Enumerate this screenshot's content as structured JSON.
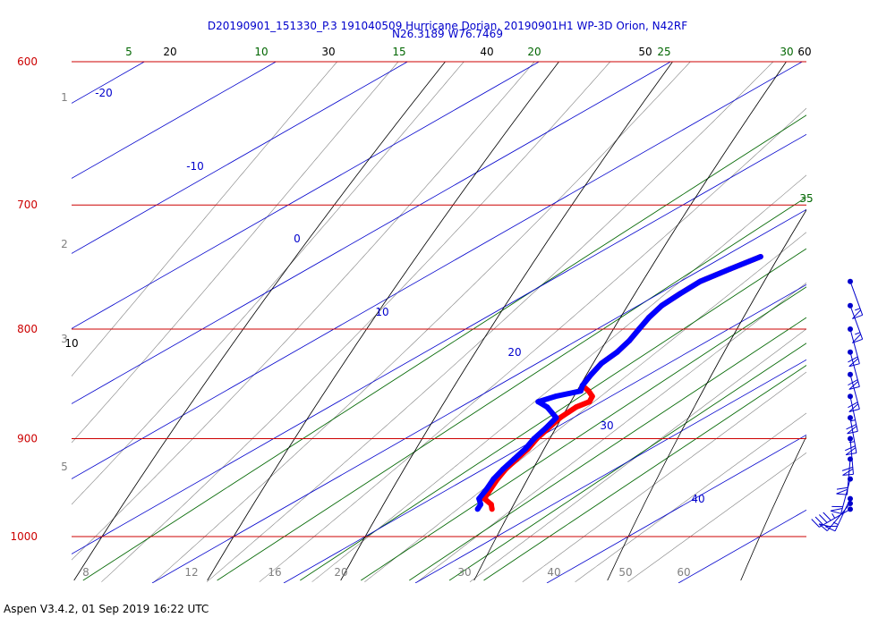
{
  "title": {
    "line1": "D20190901_151330_P.3 191040509 Hurricane Dorian, 20190901H1 WP-3D Orion, N42RF",
    "line2": "N26.3189 W76.7469"
  },
  "footer": "Aspen V3.4.2, 01 Sep 2019  16:22 UTC",
  "colors": {
    "isobar": "#cc0000",
    "isotherm": "#0000cc",
    "mixing_ratio": "#006600",
    "dry_adiabat": "#000000",
    "moist_adiabat": "#808080",
    "temperature": "#ff0000",
    "dewpoint": "#0000ff",
    "wind_barb": "#0000cc"
  },
  "chart_data": {
    "type": "skew-t",
    "pressure_levels": [
      {
        "p": 600,
        "label": "600"
      },
      {
        "p": 700,
        "label": "700"
      },
      {
        "p": 800,
        "label": "800"
      },
      {
        "p": 900,
        "label": "900"
      },
      {
        "p": 1000,
        "label": "1000"
      }
    ],
    "ylim_hpa": [
      600,
      1040
    ],
    "top_labels": [
      {
        "text": "5",
        "kind": "mixing_ratio"
      },
      {
        "text": "20",
        "kind": "dry_adiabat"
      },
      {
        "text": "10",
        "kind": "mixing_ratio"
      },
      {
        "text": "30",
        "kind": "dry_adiabat"
      },
      {
        "text": "15",
        "kind": "mixing_ratio"
      },
      {
        "text": "40",
        "kind": "dry_adiabat"
      },
      {
        "text": "20",
        "kind": "mixing_ratio"
      },
      {
        "text": "50",
        "kind": "dry_adiabat"
      },
      {
        "text": "25",
        "kind": "mixing_ratio"
      },
      {
        "text": "30",
        "kind": "mixing_ratio"
      },
      {
        "text": "60",
        "kind": "dry_adiabat"
      }
    ],
    "right_labels": [
      {
        "text": "35",
        "kind": "mixing_ratio"
      }
    ],
    "left_labels": [
      {
        "text": "10",
        "kind": "dry_adiabat"
      }
    ],
    "height_km_labels": [
      "1",
      "2",
      "3",
      "5"
    ],
    "bottom_labels": [
      "8",
      "12",
      "16",
      "20",
      "30",
      "40",
      "50",
      "60"
    ],
    "isotherm_labels": [
      "-20",
      "-10",
      "0",
      "10",
      "20",
      "30",
      "40"
    ],
    "temperature_profile": [
      {
        "p": 740,
        "t": 12.8
      },
      {
        "p": 750,
        "t": 12.1
      },
      {
        "p": 760,
        "t": 11.5
      },
      {
        "p": 770,
        "t": 11.6
      },
      {
        "p": 780,
        "t": 11.8
      },
      {
        "p": 790,
        "t": 12.4
      },
      {
        "p": 800,
        "t": 13.2
      },
      {
        "p": 810,
        "t": 14.0
      },
      {
        "p": 820,
        "t": 14.6
      },
      {
        "p": 830,
        "t": 14.9
      },
      {
        "p": 840,
        "t": 15.6
      },
      {
        "p": 850,
        "t": 16.4
      },
      {
        "p": 855,
        "t": 17.6
      },
      {
        "p": 860,
        "t": 18.6
      },
      {
        "p": 865,
        "t": 19.1
      },
      {
        "p": 870,
        "t": 18.8
      },
      {
        "p": 880,
        "t": 19.0
      },
      {
        "p": 890,
        "t": 19.5
      },
      {
        "p": 900,
        "t": 20.0
      },
      {
        "p": 910,
        "t": 20.7
      },
      {
        "p": 920,
        "t": 21.2
      },
      {
        "p": 930,
        "t": 21.7
      },
      {
        "p": 940,
        "t": 22.4
      },
      {
        "p": 950,
        "t": 23.2
      },
      {
        "p": 960,
        "t": 24.0
      },
      {
        "p": 966,
        "t": 25.3
      },
      {
        "p": 971,
        "t": 26.0
      }
    ],
    "dewpoint_profile": [
      {
        "p": 740,
        "t": 12.8
      },
      {
        "p": 750,
        "t": 12.1
      },
      {
        "p": 760,
        "t": 11.5
      },
      {
        "p": 770,
        "t": 11.6
      },
      {
        "p": 780,
        "t": 11.8
      },
      {
        "p": 790,
        "t": 12.4
      },
      {
        "p": 800,
        "t": 13.2
      },
      {
        "p": 810,
        "t": 14.0
      },
      {
        "p": 820,
        "t": 14.6
      },
      {
        "p": 830,
        "t": 14.9
      },
      {
        "p": 840,
        "t": 15.6
      },
      {
        "p": 850,
        "t": 16.4
      },
      {
        "p": 855,
        "t": 17.0
      },
      {
        "p": 860,
        "t": 15.8
      },
      {
        "p": 865,
        "t": 15.2
      },
      {
        "p": 870,
        "t": 16.6
      },
      {
        "p": 880,
        "t": 18.7
      },
      {
        "p": 890,
        "t": 19.3
      },
      {
        "p": 900,
        "t": 19.8
      },
      {
        "p": 910,
        "t": 20.5
      },
      {
        "p": 920,
        "t": 21.0
      },
      {
        "p": 930,
        "t": 21.5
      },
      {
        "p": 940,
        "t": 22.1
      },
      {
        "p": 950,
        "t": 22.9
      },
      {
        "p": 960,
        "t": 23.6
      },
      {
        "p": 966,
        "t": 24.5
      },
      {
        "p": 971,
        "t": 24.9
      }
    ],
    "wind_barbs": [
      {
        "p": 760,
        "speed_kt": 55,
        "dir_deg": 160
      },
      {
        "p": 780,
        "speed_kt": 55,
        "dir_deg": 160
      },
      {
        "p": 800,
        "speed_kt": 60,
        "dir_deg": 165
      },
      {
        "p": 820,
        "speed_kt": 60,
        "dir_deg": 165
      },
      {
        "p": 840,
        "speed_kt": 60,
        "dir_deg": 165
      },
      {
        "p": 860,
        "speed_kt": 65,
        "dir_deg": 168
      },
      {
        "p": 880,
        "speed_kt": 65,
        "dir_deg": 170
      },
      {
        "p": 900,
        "speed_kt": 60,
        "dir_deg": 175
      },
      {
        "p": 920,
        "speed_kt": 60,
        "dir_deg": 185
      },
      {
        "p": 940,
        "speed_kt": 60,
        "dir_deg": 195
      },
      {
        "p": 960,
        "speed_kt": 55,
        "dir_deg": 205
      },
      {
        "p": 965,
        "speed_kt": 50,
        "dir_deg": 220
      },
      {
        "p": 971,
        "speed_kt": 45,
        "dir_deg": 240
      }
    ]
  }
}
